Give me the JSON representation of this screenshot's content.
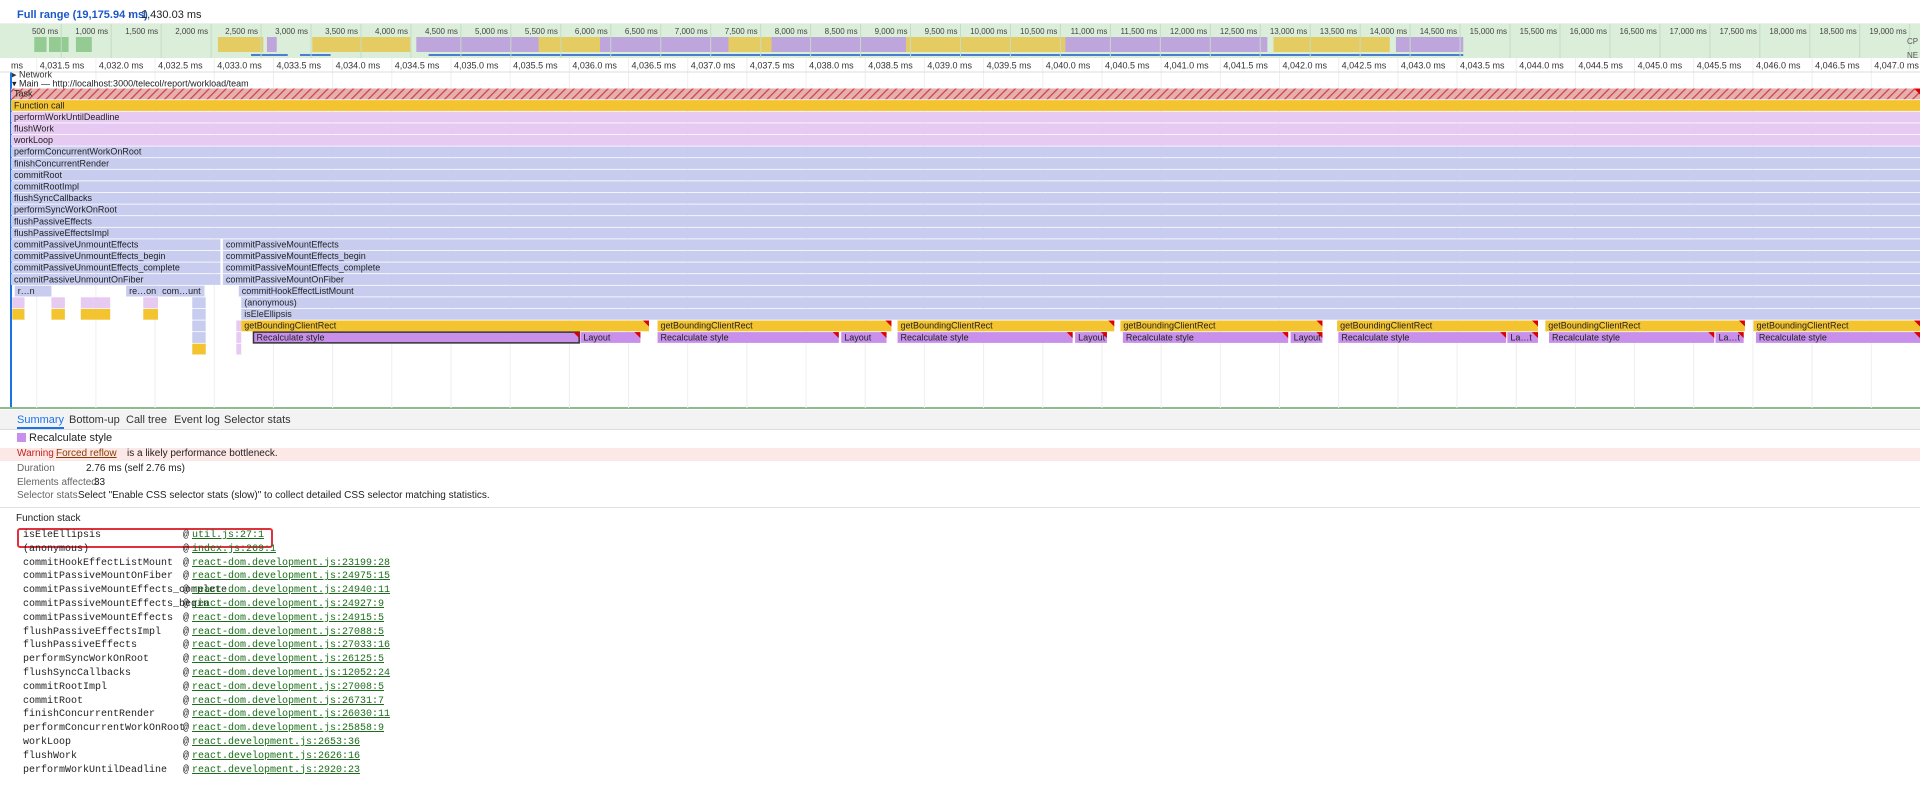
{
  "toolbar": {
    "range": "Full range (19,175.94 ms)",
    "separator": "›",
    "selection": "1,430.03 ms"
  },
  "overview": {
    "ticks": [
      "500 ms",
      "1,000 ms",
      "1,500 ms",
      "2,000 ms",
      "2,500 ms",
      "3,000 ms",
      "3,500 ms",
      "4,000 ms",
      "4,500 ms",
      "5,000 ms",
      "5,500 ms",
      "6,000 ms",
      "6,500 ms",
      "7,000 ms",
      "7,500 ms",
      "8,000 ms",
      "8,500 ms",
      "9,000 ms",
      "9,500 ms",
      "10,000 ms",
      "10,500 ms",
      "11,000 ms",
      "11,500 ms",
      "12,000 ms",
      "12,500 ms",
      "13,000 ms",
      "13,500 ms",
      "14,000 ms",
      "14,500 ms",
      "15,000 ms",
      "15,500 ms",
      "16,000 ms",
      "16,500 ms",
      "17,000 ms",
      "17,500 ms",
      "18,000 ms",
      "18,500 ms",
      "19,000 ms"
    ],
    "track_labels": [
      "CP",
      "NE"
    ]
  },
  "ruler": {
    "ticks": [
      "ms",
      "4,031.5 ms",
      "4,032.0 ms",
      "4,032.5 ms",
      "4,033.0 ms",
      "4,033.5 ms",
      "4,034.0 ms",
      "4,034.5 ms",
      "4,035.0 ms",
      "4,035.5 ms",
      "4,036.0 ms",
      "4,036.5 ms",
      "4,037.0 ms",
      "4,037.5 ms",
      "4,038.0 ms",
      "4,038.5 ms",
      "4,039.0 ms",
      "4,039.5 ms",
      "4,040.0 ms",
      "4,040.5 ms",
      "4,041.0 ms",
      "4,041.5 ms",
      "4,042.0 ms",
      "4,042.5 ms",
      "4,043.0 ms",
      "4,043.5 ms",
      "4,044.0 ms",
      "4,044.5 ms",
      "4,045.0 ms",
      "4,045.5 ms",
      "4,046.0 ms",
      "4,046.5 ms",
      "4,047.0 ms"
    ]
  },
  "tracks": {
    "network": "▸ Network",
    "main": "▾ Main — http://localhost:3000/telecol/report/workload/team"
  },
  "flame": {
    "full_rows": [
      "Task",
      "Function call",
      "performWorkUntilDeadline",
      "flushWork",
      "workLoop",
      "performConcurrentWorkOnRoot",
      "finishConcurrentRender",
      "commitRoot",
      "commitRootImpl",
      "flushSyncCallbacks",
      "performSyncWorkOnRoot",
      "flushPassiveEffects",
      "flushPassiveEffectsImpl"
    ],
    "split_rows": [
      {
        "left": "commitPassiveUnmountEffects",
        "right": "commitPassiveMountEffects"
      },
      {
        "left": "commitPassiveUnmountEffects_begin",
        "right": "commitPassiveMountEffects_begin"
      },
      {
        "left": "commitPassiveUnmountEffects_complete",
        "right": "commitPassiveMountEffects_complete"
      },
      {
        "left": "commitPassiveUnmountOnFiber",
        "right": "commitPassiveMountOnFiber"
      }
    ],
    "short_labels": [
      "r…n",
      "re…on",
      "com…unt"
    ],
    "hook": "commitHookEffectListMount",
    "anonymous": "(anonymous)",
    "ellipsis": "isEleEllipsis",
    "bounding": [
      "getBoundingClientRect",
      "getBoundingClientRect",
      "getBoundingClientRect",
      "getBoundingClientRect",
      "getBoundingClientRect",
      "getBoundingClientRect",
      "getBoundingClientRect"
    ],
    "recalc": [
      "Recalculate style",
      "Recalculate style",
      "Recalculate style",
      "Recalculate style",
      "Recalculate style",
      "Recalculate style",
      "Recalculate style"
    ],
    "layout": [
      "Layout",
      "Layout",
      "Layout",
      "Layout",
      "La…t",
      "La…t"
    ]
  },
  "tabs": [
    "Summary",
    "Bottom-up",
    "Call tree",
    "Event log",
    "Selector stats"
  ],
  "summary": {
    "title": "Recalculate style",
    "warning_label": "Warning",
    "warning_link": "Forced reflow",
    "warning_text": "is a likely performance bottleneck.",
    "rows": [
      {
        "label": "Duration",
        "value": "2.76 ms (self 2.76 ms)"
      },
      {
        "label": "Elements affected",
        "value": "33"
      },
      {
        "label": "Selector stats",
        "value": "Select \"Enable CSS selector stats (slow)\" to collect detailed CSS selector matching statistics."
      }
    ]
  },
  "function_stack": {
    "title": "Function stack",
    "at": "@",
    "frames": [
      {
        "fn": "isEleEllipsis",
        "link": "util.js:27:1"
      },
      {
        "fn": "(anonymous)",
        "link": "index.js:269:1"
      },
      {
        "fn": "commitHookEffectListMount",
        "link": "react-dom.development.js:23199:28"
      },
      {
        "fn": "commitPassiveMountOnFiber",
        "link": "react-dom.development.js:24975:15"
      },
      {
        "fn": "commitPassiveMountEffects_complete",
        "link": "react-dom.development.js:24940:11"
      },
      {
        "fn": "commitPassiveMountEffects_begin",
        "link": "react-dom.development.js:24927:9"
      },
      {
        "fn": "commitPassiveMountEffects",
        "link": "react-dom.development.js:24915:5"
      },
      {
        "fn": "flushPassiveEffectsImpl",
        "link": "react-dom.development.js:27088:5"
      },
      {
        "fn": "flushPassiveEffects",
        "link": "react-dom.development.js:27033:16"
      },
      {
        "fn": "performSyncWorkOnRoot",
        "link": "react-dom.development.js:26125:5"
      },
      {
        "fn": "flushSyncCallbacks",
        "link": "react-dom.development.js:12052:24"
      },
      {
        "fn": "commitRootImpl",
        "link": "react-dom.development.js:27008:5"
      },
      {
        "fn": "commitRoot",
        "link": "react-dom.development.js:26731:7"
      },
      {
        "fn": "finishConcurrentRender",
        "link": "react-dom.development.js:26030:11"
      },
      {
        "fn": "performConcurrentWorkOnRoot",
        "link": "react-dom.development.js:25858:9"
      },
      {
        "fn": "workLoop",
        "link": "react.development.js:2653:36"
      },
      {
        "fn": "flushWork",
        "link": "react.development.js:2626:16"
      },
      {
        "fn": "performWorkUntilDeadline",
        "link": "react.development.js:2920:23"
      }
    ]
  }
}
